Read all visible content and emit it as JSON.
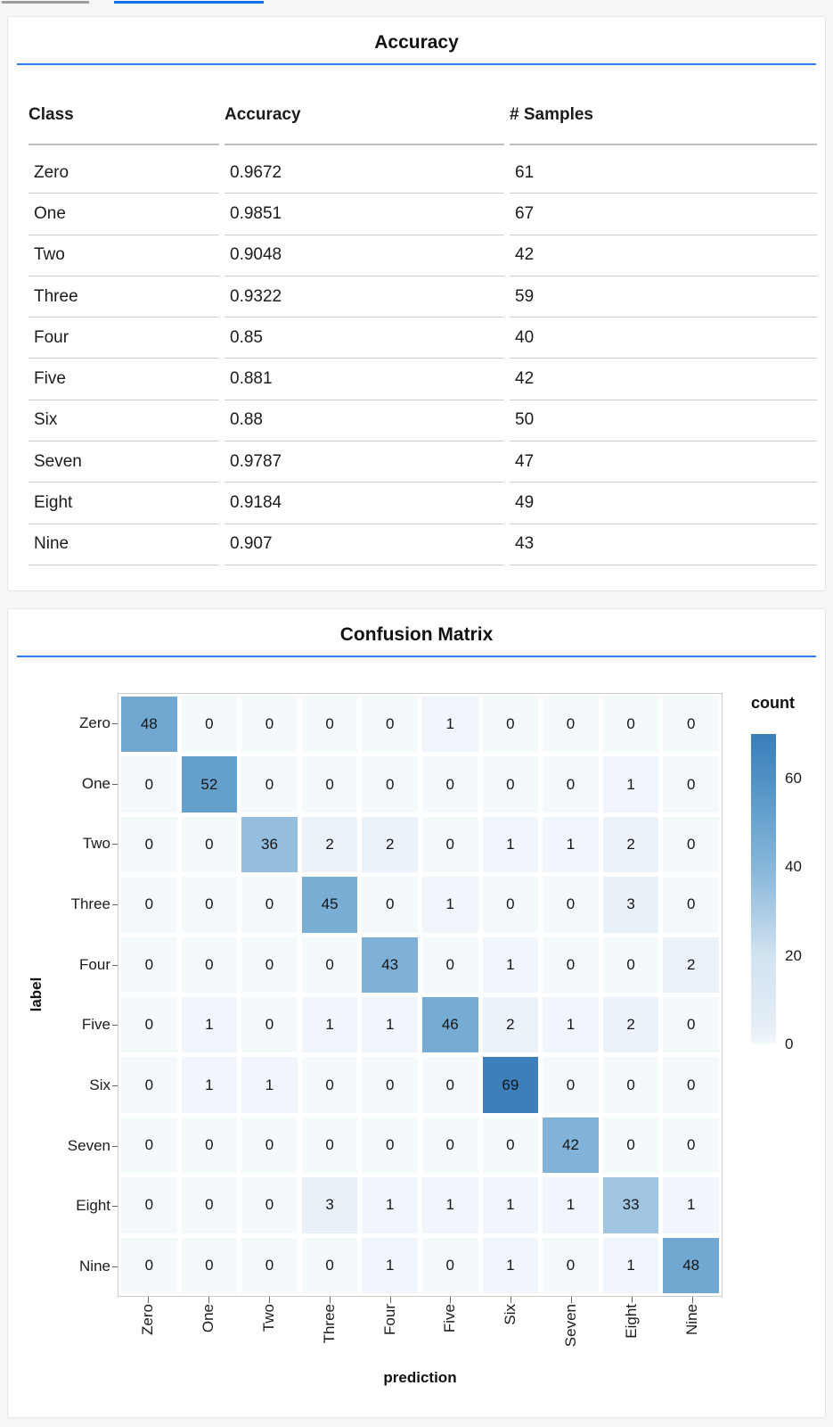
{
  "colors": {
    "accent_rule_blue": "#2e7cf0",
    "tab_active_blue": "#1a73e8",
    "tab_inactive_gray": "#9e9e9e",
    "heatmap_max_blue": "#3a7db9",
    "heatmap_min_blue": "#f4f9fc"
  },
  "chart_data": [
    {
      "type": "table",
      "title": "Accuracy",
      "columns": [
        "Class",
        "Accuracy",
        "# Samples"
      ],
      "rows": [
        [
          "Zero",
          "0.9672",
          "61"
        ],
        [
          "One",
          "0.9851",
          "67"
        ],
        [
          "Two",
          "0.9048",
          "42"
        ],
        [
          "Three",
          "0.9322",
          "59"
        ],
        [
          "Four",
          "0.85",
          "40"
        ],
        [
          "Five",
          "0.881",
          "42"
        ],
        [
          "Six",
          "0.88",
          "50"
        ],
        [
          "Seven",
          "0.9787",
          "47"
        ],
        [
          "Eight",
          "0.9184",
          "49"
        ],
        [
          "Nine",
          "0.907",
          "43"
        ]
      ]
    },
    {
      "type": "heatmap",
      "title": "Confusion Matrix",
      "xlabel": "prediction",
      "ylabel": "label",
      "legend_title": "count",
      "legend_position": "right",
      "x_categories": [
        "Zero",
        "One",
        "Two",
        "Three",
        "Four",
        "Five",
        "Six",
        "Seven",
        "Eight",
        "Nine"
      ],
      "y_categories": [
        "Zero",
        "One",
        "Two",
        "Three",
        "Four",
        "Five",
        "Six",
        "Seven",
        "Eight",
        "Nine"
      ],
      "values": [
        [
          48,
          0,
          0,
          0,
          0,
          1,
          0,
          0,
          0,
          0
        ],
        [
          0,
          52,
          0,
          0,
          0,
          0,
          0,
          0,
          1,
          0
        ],
        [
          0,
          0,
          36,
          2,
          2,
          0,
          1,
          1,
          2,
          0
        ],
        [
          0,
          0,
          0,
          45,
          0,
          1,
          0,
          0,
          3,
          0
        ],
        [
          0,
          0,
          0,
          0,
          43,
          0,
          1,
          0,
          0,
          2
        ],
        [
          0,
          1,
          0,
          1,
          1,
          46,
          2,
          1,
          2,
          0
        ],
        [
          0,
          1,
          1,
          0,
          0,
          0,
          69,
          0,
          0,
          0
        ],
        [
          0,
          0,
          0,
          0,
          0,
          0,
          0,
          42,
          0,
          0
        ],
        [
          0,
          0,
          0,
          3,
          1,
          1,
          1,
          1,
          33,
          1
        ],
        [
          0,
          0,
          0,
          0,
          1,
          0,
          1,
          0,
          1,
          48
        ]
      ],
      "color_scale": {
        "scheme": "blues",
        "domain": [
          0,
          70
        ],
        "legend_ticks": [
          60,
          40,
          20,
          0
        ],
        "anchors": [
          [
            0,
            "#f4f9fc"
          ],
          [
            2,
            "#ebf2f9"
          ],
          [
            5,
            "#e4eef6"
          ],
          [
            10,
            "#dde9f4"
          ],
          [
            20,
            "#d2e3f0"
          ],
          [
            30,
            "#abcbe5"
          ],
          [
            40,
            "#87b6d9"
          ],
          [
            50,
            "#6ba4cf"
          ],
          [
            60,
            "#4f90c4"
          ],
          [
            70,
            "#3a7db9"
          ]
        ]
      }
    }
  ]
}
